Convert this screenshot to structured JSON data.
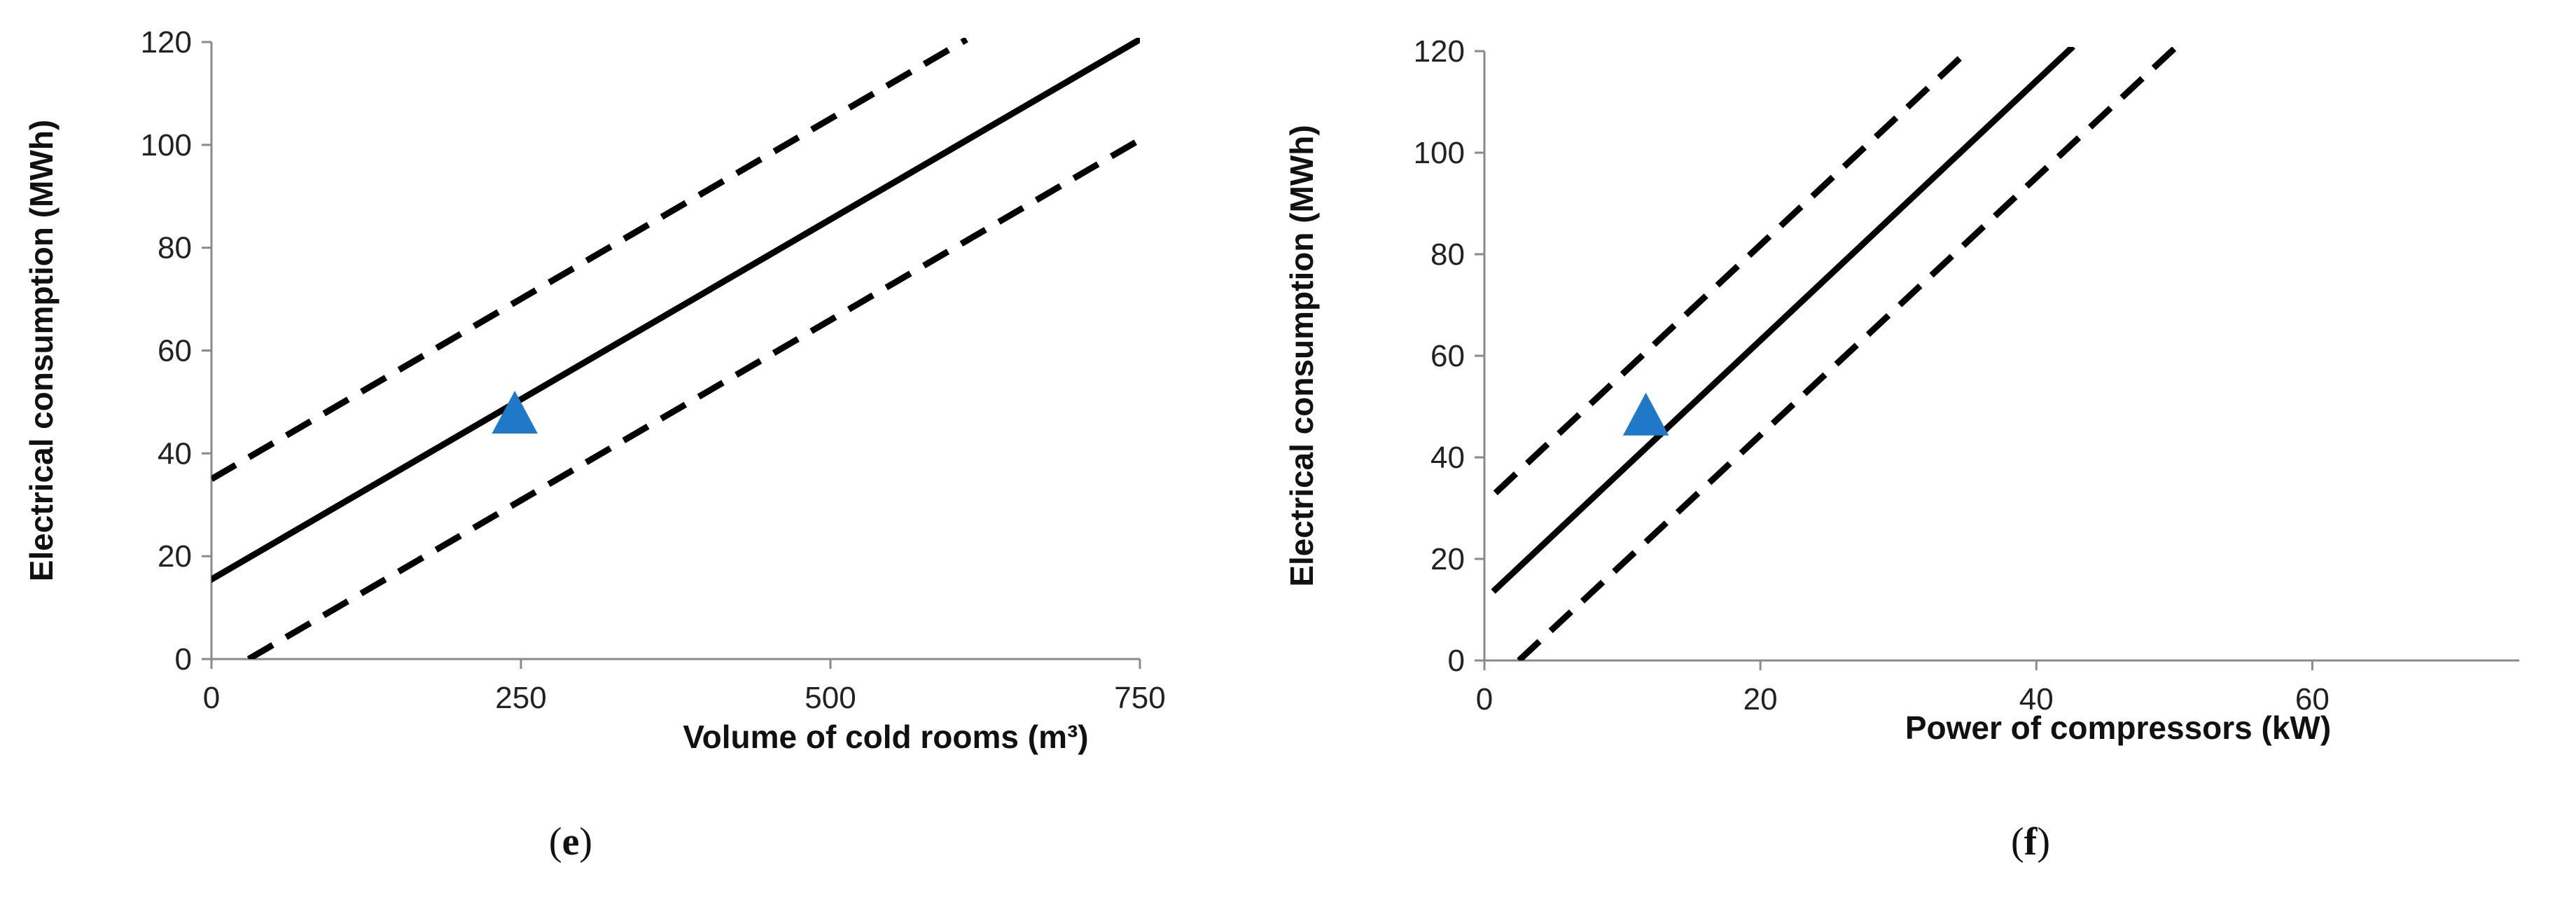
{
  "chart_data": [
    {
      "type": "line",
      "panel_label": "e",
      "xlabel": "Volume of cold rooms (m³)",
      "ylabel": "Electrical consumption (MWh)",
      "xlim": [
        0,
        750
      ],
      "ylim": [
        0,
        120
      ],
      "xticks": [
        0,
        250,
        500,
        750
      ],
      "yticks": [
        0,
        20,
        40,
        60,
        80,
        100,
        120
      ],
      "grid": false,
      "legend": "none",
      "series": [
        {
          "role": "fit",
          "style": "solid",
          "color": "#000000",
          "x": [
            0,
            750
          ],
          "y": [
            15.5,
            120.5
          ]
        },
        {
          "role": "upper",
          "style": "dashed",
          "color": "#000000",
          "x": [
            0,
            610
          ],
          "y": [
            35,
            120.5
          ]
        },
        {
          "role": "lower",
          "style": "dashed",
          "color": "#000000",
          "x": [
            30,
            750
          ],
          "y": [
            0,
            101
          ]
        }
      ],
      "points": [
        {
          "marker": "triangle",
          "color": "#1F78C8",
          "x": 245,
          "y": 47
        }
      ]
    },
    {
      "type": "line",
      "panel_label": "f",
      "xlabel": "Power of compressors (kW)",
      "ylabel": "Electrical consumption (MWh)",
      "xlim": [
        0,
        75
      ],
      "ylim": [
        0,
        120
      ],
      "xticks": [
        0,
        20,
        40,
        60
      ],
      "yticks": [
        0,
        20,
        40,
        60,
        80,
        100,
        120
      ],
      "grid": false,
      "legend": "none",
      "series": [
        {
          "role": "fit",
          "style": "solid",
          "color": "#000000",
          "x": [
            0.8,
            42.5
          ],
          "y": [
            14,
            120.5
          ]
        },
        {
          "role": "upper",
          "style": "dashed",
          "color": "#000000",
          "x": [
            0.8,
            35.2
          ],
          "y": [
            33,
            120.5
          ]
        },
        {
          "role": "lower",
          "style": "dashed",
          "color": "#000000",
          "x": [
            2.5,
            50
          ],
          "y": [
            0,
            120.5
          ]
        }
      ],
      "points": [
        {
          "marker": "triangle",
          "color": "#1F78C8",
          "x": 11.7,
          "y": 47.5
        }
      ]
    }
  ]
}
